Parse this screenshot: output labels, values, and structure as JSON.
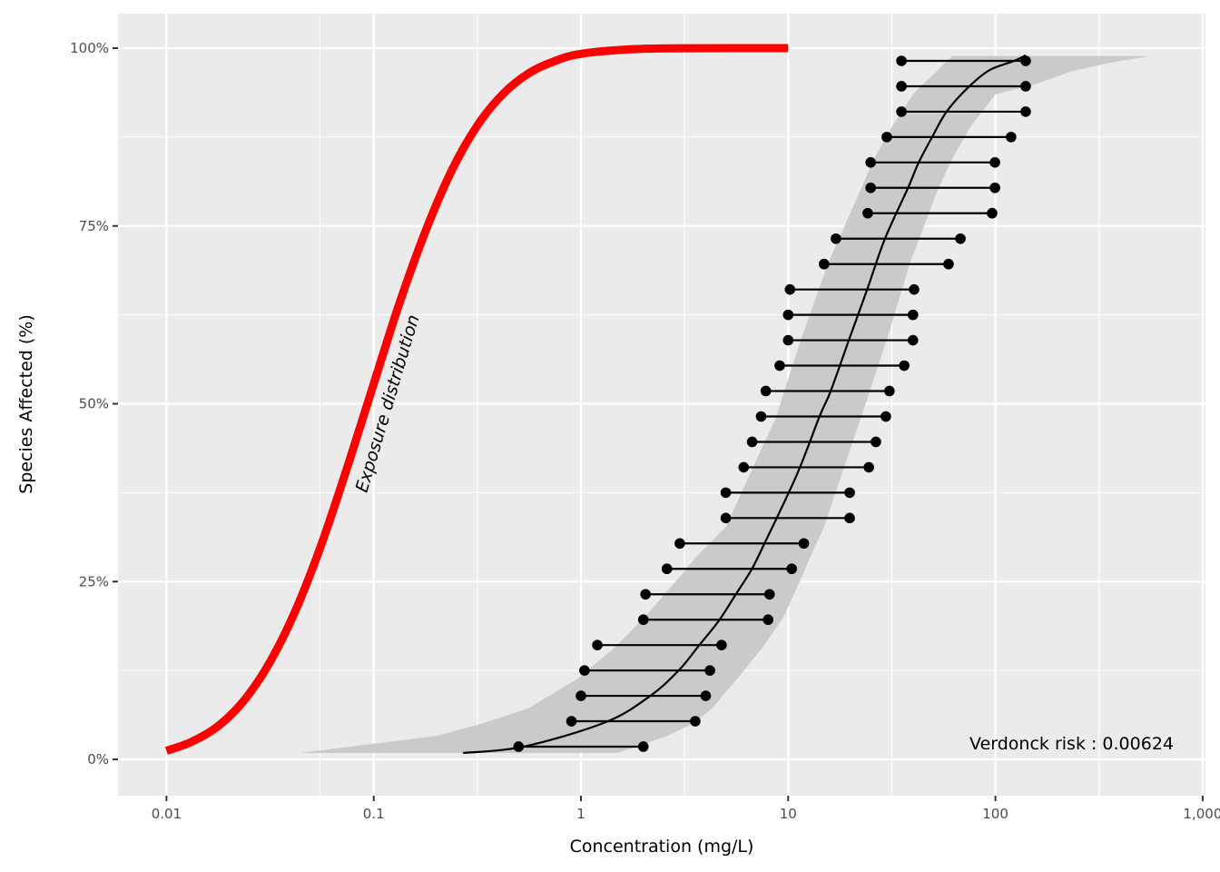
{
  "chart_data": {
    "type": "line",
    "xlabel": "Concentration (mg/L)",
    "ylabel": "Species Affected (%)",
    "x_scale": "log10",
    "xlim": [
      0.006,
      1100
    ],
    "ylim": [
      -5,
      105
    ],
    "x_ticks": [
      0.01,
      0.1,
      1,
      10,
      100,
      1000
    ],
    "x_tick_labels": [
      "0.01",
      "0.1",
      "1",
      "10",
      "100",
      "1,000"
    ],
    "y_ticks": [
      0,
      25,
      50,
      75,
      100
    ],
    "y_tick_labels": [
      "0%",
      "25%",
      "50%",
      "75%",
      "100%"
    ],
    "grid": true,
    "colors": {
      "panel": "#ebebeb",
      "grid": "#ffffff",
      "exposure": "#ff0000",
      "band": "#c8c8c8",
      "fit": "#000000",
      "points": "#000000"
    },
    "annotations": {
      "exposure_label": "Exposure distribution",
      "risk_label": "Verdonck risk : 0.00624"
    },
    "exposure_distribution": {
      "x": [
        0.01,
        0.0133,
        0.0178,
        0.0237,
        0.0316,
        0.0422,
        0.0562,
        0.075,
        0.1,
        0.133,
        0.178,
        0.237,
        0.316,
        0.422,
        0.562,
        0.75,
        1,
        1.78,
        3.16,
        10
      ],
      "y": [
        1.2,
        2.5,
        4.7,
        8.3,
        13.7,
        21.1,
        30.4,
        41.3,
        52.8,
        64.1,
        74.3,
        82.7,
        89.1,
        93.6,
        96.5,
        98.2,
        99.2,
        99.85,
        99.98,
        100
      ]
    },
    "fitted_ssd": {
      "x": [
        0.27,
        0.53,
        1.31,
        2.13,
        2.94,
        3.71,
        4.63,
        5.56,
        6.66,
        7.67,
        11,
        14.2,
        16.0,
        19.6,
        24.0,
        29.3,
        37.8,
        42.6,
        49.5,
        58.2,
        74,
        93.5,
        123,
        140
      ],
      "y": [
        0.9,
        1.8,
        5.2,
        8.8,
        12.4,
        16.0,
        19.5,
        23.1,
        26.7,
        30.3,
        40,
        48.3,
        51.7,
        58.9,
        66.0,
        73.2,
        80.3,
        83.9,
        87.5,
        91.1,
        94.5,
        96.9,
        98.2,
        99.0
      ]
    },
    "confidence_band": {
      "y": [
        0.9,
        3.3,
        5.0,
        7.2,
        11.4,
        15.7,
        20.0,
        26.3,
        28.5,
        32.7,
        48.0,
        59.0,
        70.0,
        80.0,
        84.5,
        89.0,
        93.5,
        95.0,
        96.7,
        97.9,
        98.9
      ],
      "lower": [
        0.044,
        0.2,
        0.33,
        0.56,
        0.97,
        1.45,
        2.03,
        3.13,
        3.6,
        5.0,
        8.7,
        11.5,
        15.7,
        22.3,
        26,
        31.8,
        40,
        44.8,
        52,
        57,
        62
      ],
      "upper": [
        1.5,
        2.6,
        3.46,
        4.3,
        5.7,
        7.5,
        9.5,
        11.9,
        12.8,
        14.9,
        22.4,
        29.9,
        38.9,
        52.6,
        62,
        76,
        100,
        159,
        231,
        350,
        560
      ]
    },
    "intervals": {
      "y": [
        1.79,
        5.36,
        8.93,
        12.5,
        16.07,
        19.64,
        23.21,
        26.79,
        30.36,
        33.93,
        37.5,
        41.07,
        44.64,
        48.21,
        51.79,
        55.36,
        58.93,
        62.5,
        66.07,
        69.64,
        73.21,
        76.79,
        80.36,
        83.93,
        87.5,
        91.07,
        94.64,
        98.21
      ],
      "left": [
        0.5,
        0.9,
        1.0,
        1.04,
        1.2,
        2.0,
        2.05,
        2.6,
        3.0,
        5.0,
        5.0,
        6.1,
        6.7,
        7.4,
        7.8,
        9.1,
        10,
        10,
        10.2,
        14.9,
        17,
        24.2,
        25,
        25,
        29.9,
        35.2,
        35.2,
        35.2
      ],
      "right": [
        2.0,
        3.56,
        4.0,
        4.19,
        4.77,
        8.0,
        8.13,
        10.4,
        11.9,
        19.8,
        19.8,
        24.5,
        26.5,
        29.6,
        30.8,
        36.3,
        40,
        40,
        40.5,
        59.4,
        67.8,
        96.4,
        99.5,
        99.5,
        119,
        140,
        140,
        140
      ]
    }
  }
}
